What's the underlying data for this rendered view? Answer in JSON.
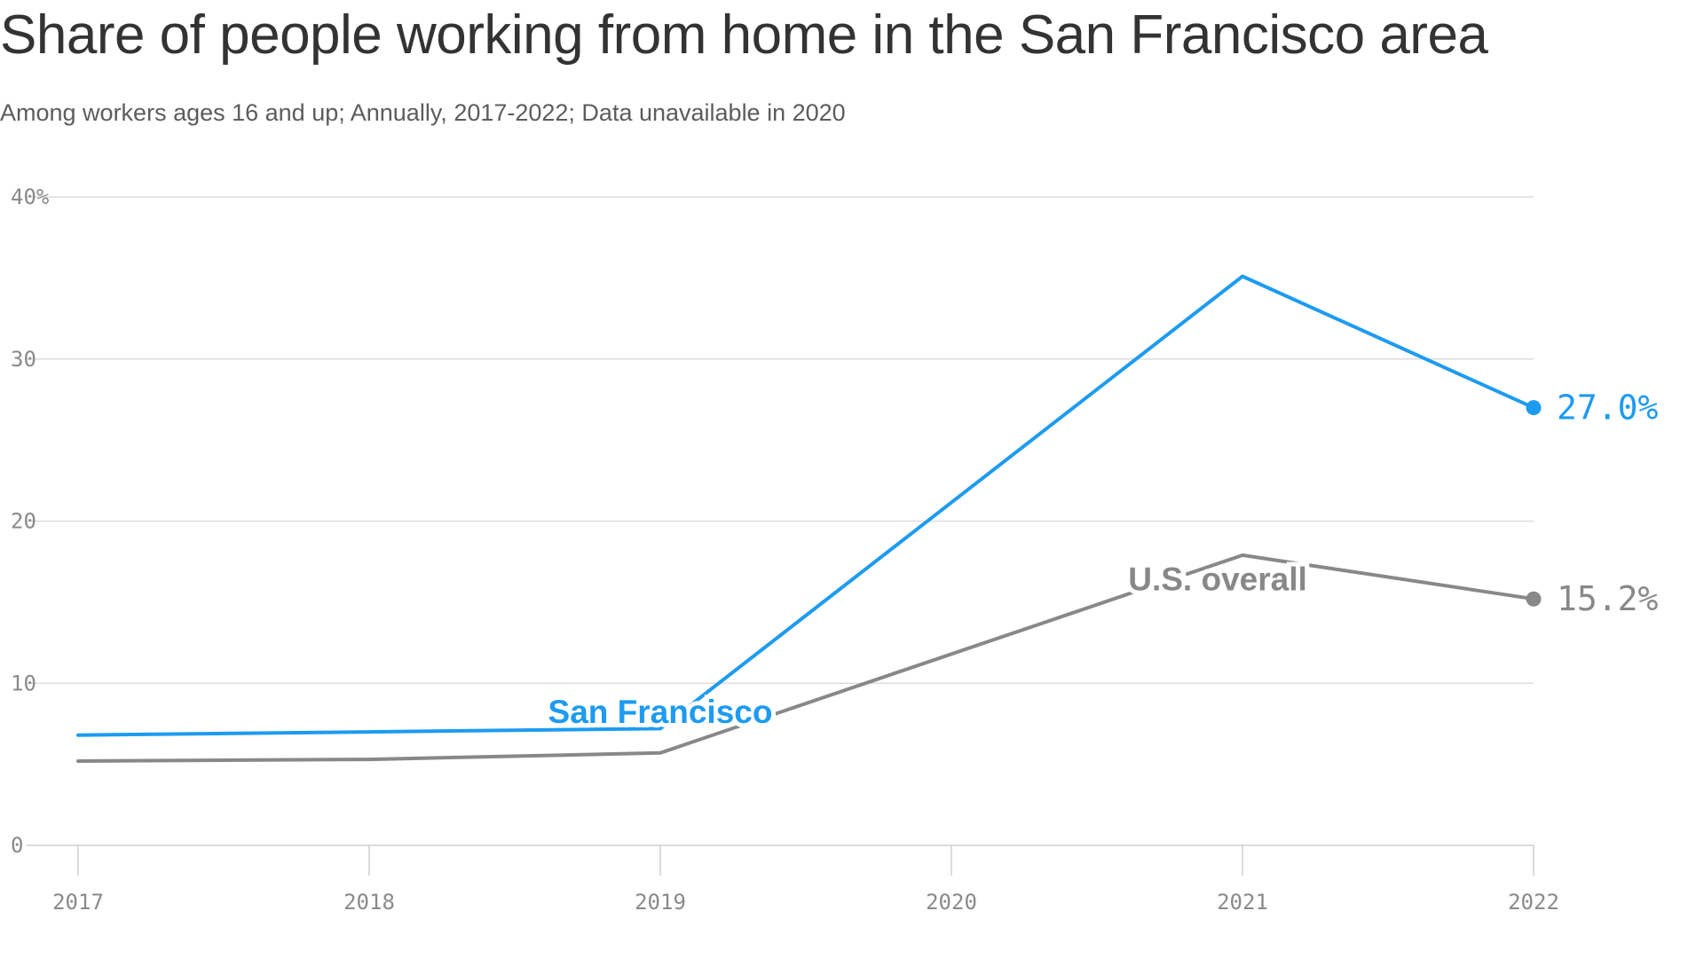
{
  "chart_data": {
    "type": "line",
    "title": "Share of people working from home in the San Francisco area",
    "subtitle": "Among workers ages 16 and up; Annually, 2017-2022; Data unavailable in 2020",
    "x": [
      2017,
      2018,
      2019,
      2021,
      2022
    ],
    "x_ticks": [
      "2017",
      "2018",
      "2019",
      "2020",
      "2021",
      "2022"
    ],
    "y_ticks": [
      "0",
      "10",
      "20",
      "30",
      "40%"
    ],
    "y_tick_values": [
      0,
      10,
      20,
      30,
      40
    ],
    "ylim": [
      0,
      40
    ],
    "xlim": [
      2017,
      2022
    ],
    "grid": true,
    "series": [
      {
        "name": "San Francisco",
        "color": "#1d9bf0",
        "values": [
          6.8,
          7.0,
          7.2,
          35.1,
          27.0
        ],
        "end_label": "27.0%"
      },
      {
        "name": "U.S. overall",
        "color": "#888888",
        "values": [
          5.2,
          5.3,
          5.7,
          17.9,
          15.2
        ],
        "end_label": "15.2%"
      }
    ]
  }
}
